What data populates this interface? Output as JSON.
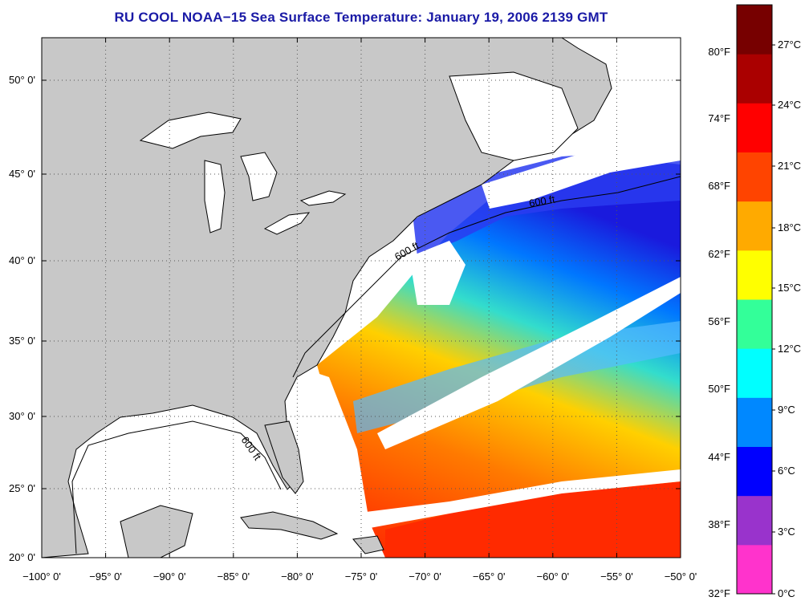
{
  "title": "RU COOL  NOAA−15  Sea Surface Temperature:  January 19, 2006 2139 GMT",
  "map": {
    "lon_labels": [
      "−100° 0'",
      "−95° 0'",
      "−90° 0'",
      "−85° 0'",
      "−80° 0'",
      "−75° 0'",
      "−70° 0'",
      "−65° 0'",
      "−60° 0'",
      "−55° 0'",
      "−50° 0'"
    ],
    "lat_labels": [
      "50° 0'",
      "45° 0'",
      "40° 0'",
      "35° 0'",
      "30° 0'",
      "25° 0'",
      "20° 0'"
    ],
    "isobath_label": "600 ft",
    "colors": {
      "land": "#c8c8c8",
      "clouds": "#ffffff",
      "grid": "#555555"
    }
  },
  "colorbar": {
    "fahrenheit_labels": [
      "80°F",
      "74°F",
      "68°F",
      "62°F",
      "56°F",
      "50°F",
      "44°F",
      "38°F",
      "32°F"
    ],
    "celsius_labels": [
      "27°C",
      "24°C",
      "21°C",
      "18°C",
      "15°C",
      "12°C",
      "9°C",
      "6°C",
      "3°C",
      "0°C"
    ],
    "colors": [
      "#ff33cc",
      "#9933cc",
      "#0000ff",
      "#0088ff",
      "#00ffff",
      "#33ff99",
      "#ffff00",
      "#ffaa00",
      "#ff4400",
      "#ff0000",
      "#aa0000",
      "#770000"
    ]
  }
}
